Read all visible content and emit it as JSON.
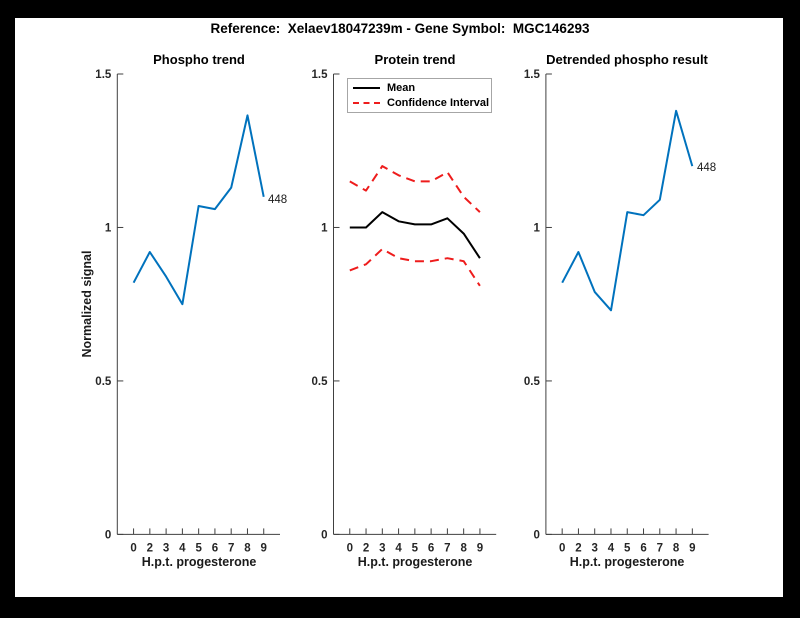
{
  "figure": {
    "title": "Reference:  Xelaev18047239m - Gene Symbol:  MGC146293",
    "background_color": "#000000",
    "canvas_color": "#ffffff",
    "axis_color": "#404040",
    "text_color": "#262626"
  },
  "axes": {
    "xlabel": "H.p.t. progesterone",
    "ylabel": "Normalized signal",
    "x_ticklabels": [
      "0",
      "2",
      "3",
      "4",
      "5",
      "6",
      "7",
      "8",
      "9"
    ],
    "y_ticklabels": [
      "0",
      "0.5",
      "1",
      "1.5"
    ],
    "y_tickvalues": [
      0,
      0.5,
      1,
      1.5
    ],
    "ylim": [
      0,
      1.5
    ],
    "grid": false
  },
  "legend": {
    "position": "top-inside-middle-plot",
    "items": [
      {
        "label": "Mean",
        "color": "#000000",
        "style": "solid"
      },
      {
        "label": "Confidence Interval",
        "color": "#ee1c1c",
        "style": "dashed"
      }
    ]
  },
  "chart_data": [
    {
      "type": "line",
      "title": "Phospho trend",
      "x_categories": [
        "0",
        "2",
        "3",
        "4",
        "5",
        "6",
        "7",
        "8",
        "9"
      ],
      "series": [
        {
          "name": "phospho-signal",
          "color": "#0072bd",
          "dashed": false,
          "values": [
            0.82,
            0.92,
            0.84,
            0.75,
            1.07,
            1.06,
            1.13,
            1.365,
            1.1
          ]
        }
      ],
      "annotation": {
        "text": "448"
      }
    },
    {
      "type": "line",
      "title": "Protein trend",
      "x_categories": [
        "0",
        "2",
        "3",
        "4",
        "5",
        "6",
        "7",
        "8",
        "9"
      ],
      "series": [
        {
          "name": "mean",
          "color": "#000000",
          "dashed": false,
          "values": [
            1.0,
            1.0,
            1.05,
            1.02,
            1.01,
            1.01,
            1.03,
            0.98,
            0.9
          ]
        },
        {
          "name": "confidence-upper",
          "color": "#ee1c1c",
          "dashed": true,
          "values": [
            1.15,
            1.12,
            1.2,
            1.17,
            1.15,
            1.15,
            1.18,
            1.1,
            1.05
          ]
        },
        {
          "name": "confidence-lower",
          "color": "#ee1c1c",
          "dashed": true,
          "values": [
            0.86,
            0.88,
            0.93,
            0.9,
            0.89,
            0.89,
            0.9,
            0.89,
            0.81
          ]
        }
      ]
    },
    {
      "type": "line",
      "title": "Detrended phospho result",
      "x_categories": [
        "0",
        "2",
        "3",
        "4",
        "5",
        "6",
        "7",
        "8",
        "9"
      ],
      "series": [
        {
          "name": "detrended-phospho-signal",
          "color": "#0072bd",
          "dashed": false,
          "values": [
            0.82,
            0.92,
            0.79,
            0.73,
            1.05,
            1.04,
            1.09,
            1.38,
            1.2
          ]
        }
      ],
      "annotation": {
        "text": "448"
      }
    }
  ]
}
